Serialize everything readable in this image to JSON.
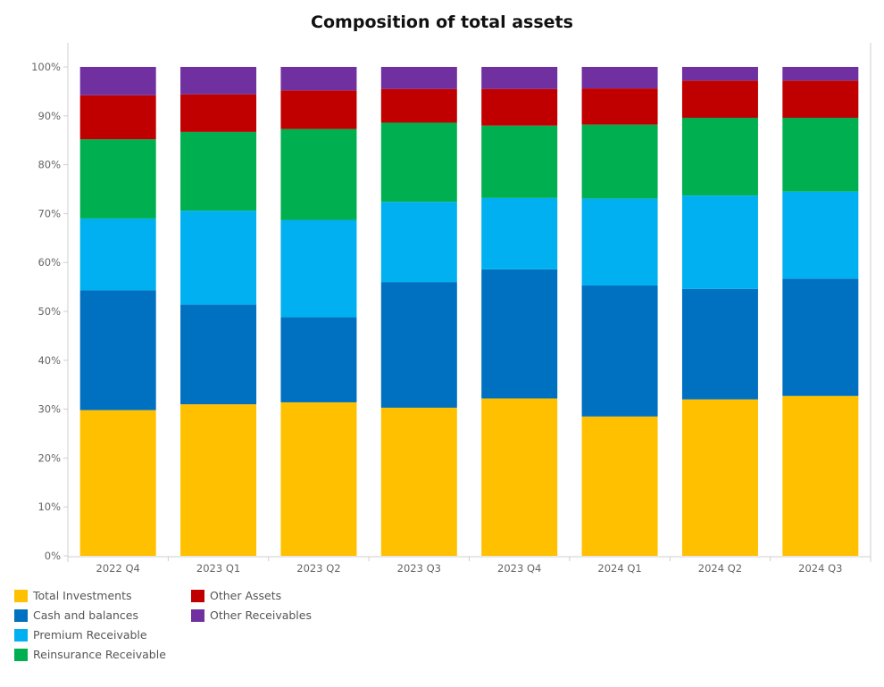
{
  "chart_data": {
    "type": "bar",
    "stacked": true,
    "title": "Composition of total assets",
    "xlabel": "",
    "ylabel": "",
    "ylim": [
      0,
      100
    ],
    "y_ticks": [
      "0%",
      "10%",
      "20%",
      "30%",
      "40%",
      "50%",
      "60%",
      "70%",
      "80%",
      "90%",
      "100%"
    ],
    "categories": [
      "2022 Q4",
      "2023 Q1",
      "2023 Q2",
      "2023 Q3",
      "2023 Q4",
      "2024 Q1",
      "2024 Q2",
      "2024 Q3"
    ],
    "series": [
      {
        "name": "Total Investments",
        "color": "#FFC000",
        "values": [
          29.8,
          31.0,
          31.4,
          30.3,
          32.2,
          28.5,
          32.0,
          32.7
        ]
      },
      {
        "name": "Cash and balances",
        "color": "#0070C0",
        "values": [
          24.5,
          20.4,
          17.4,
          25.7,
          26.4,
          26.8,
          22.6,
          24.0
        ]
      },
      {
        "name": "Premium Receivable",
        "color": "#00B0F0",
        "values": [
          14.7,
          19.2,
          19.9,
          16.4,
          14.6,
          17.8,
          19.1,
          17.8
        ]
      },
      {
        "name": "Reinsurance Receivable",
        "color": "#00B050",
        "values": [
          16.2,
          16.1,
          18.6,
          16.2,
          14.8,
          15.1,
          15.9,
          15.1
        ]
      },
      {
        "name": "Other Assets",
        "color": "#C00000",
        "values": [
          9.0,
          7.7,
          7.9,
          6.9,
          7.5,
          7.4,
          7.6,
          7.6
        ]
      },
      {
        "name": "Other Receivables",
        "color": "#7030A0",
        "values": [
          5.8,
          5.6,
          4.8,
          4.5,
          4.5,
          4.4,
          2.8,
          2.8
        ]
      }
    ],
    "grid": false,
    "legend_position": "bottom-left"
  }
}
